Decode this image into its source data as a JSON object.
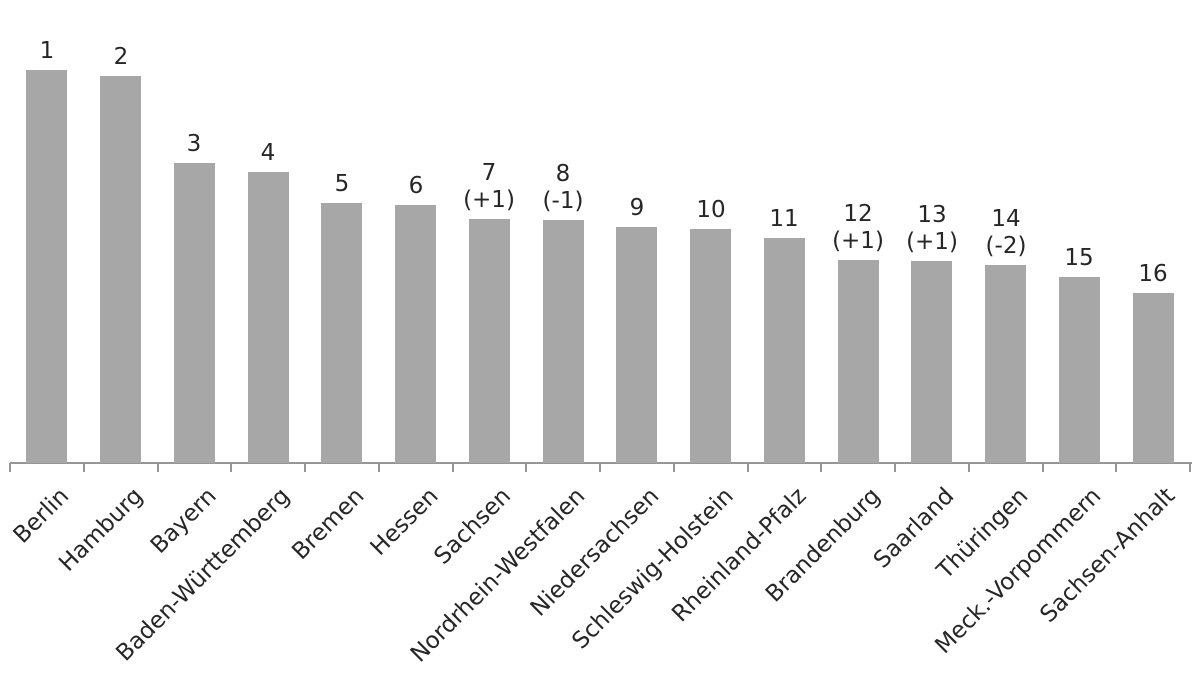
{
  "chart_data": {
    "type": "bar",
    "title": "",
    "xlabel": "",
    "ylabel": "",
    "description": "Ranking of the 16 German federal states, rank 1 (highest bar) to rank 16 (lowest bar); parenthesised labels show rank changes",
    "categories": [
      "Berlin",
      "Hamburg",
      "Bayern",
      "Baden-Württemberg",
      "Bremen",
      "Hessen",
      "Sachsen",
      "Nordrhein-Westfalen",
      "Niedersachsen",
      "Schleswig-Holstein",
      "Rheinland-Pfalz",
      "Brandenburg",
      "Saarland",
      "Thüringen",
      "Meck.-Vorpommern",
      "Sachsen-Anhalt"
    ],
    "bar_labels": [
      "1",
      "2",
      "3",
      "4",
      "5",
      "6",
      "7",
      "8",
      "9",
      "10",
      "11",
      "12",
      "13",
      "14",
      "15",
      "16"
    ],
    "bar_sublabels": [
      "",
      "",
      "",
      "",
      "",
      "",
      "(+1)",
      "(-1)",
      "",
      "",
      "",
      "(+1)",
      "(+1)",
      "(-2)",
      "",
      ""
    ],
    "series": [
      {
        "name": "score (relative bar height, no numeric axis shown)",
        "values": [
          393,
          387,
          300,
          291,
          260,
          258,
          244,
          243,
          236,
          234,
          225,
          203,
          202,
          198,
          186,
          170
        ]
      }
    ],
    "ylim": [
      0,
      420
    ],
    "value_axis_visible": false,
    "grid": false,
    "legend": "none",
    "colors": {
      "bar": "#a7a7a7",
      "axis": "#969696",
      "text": "#262626"
    }
  }
}
